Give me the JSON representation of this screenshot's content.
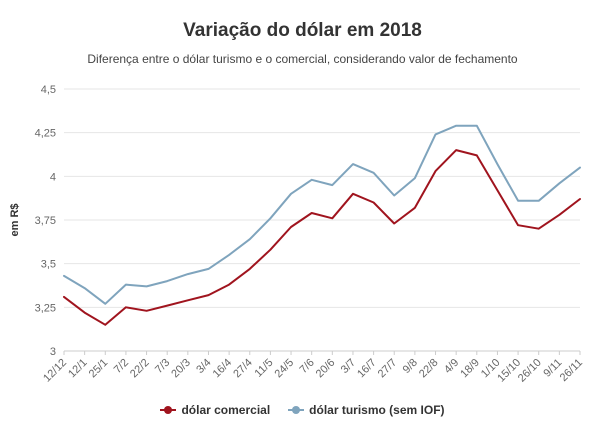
{
  "chart_data": {
    "type": "line",
    "title": "Variação do dólar em 2018",
    "subtitle": "Diferença entre o dólar turismo e o comercial, considerando valor de fechamento",
    "ylabel": "em R$",
    "ylim": [
      3,
      4.5
    ],
    "yticks": [
      "3",
      "3,25",
      "3,5",
      "3,75",
      "4",
      "4,25",
      "4,5"
    ],
    "grid": "horizontal",
    "legend_position": "bottom",
    "x": [
      "12/12",
      "12/1",
      "25/1",
      "7/2",
      "22/2",
      "7/3",
      "20/3",
      "3/4",
      "16/4",
      "27/4",
      "11/5",
      "24/5",
      "7/6",
      "20/6",
      "3/7",
      "16/7",
      "27/7",
      "9/8",
      "22/8",
      "4/9",
      "18/9",
      "1/10",
      "15/10",
      "26/10",
      "9/11",
      "26/11"
    ],
    "series": [
      {
        "name": "dólar comercial",
        "color": "#a0141e",
        "values": [
          3.31,
          3.22,
          3.15,
          3.25,
          3.23,
          3.26,
          3.29,
          3.32,
          3.38,
          3.47,
          3.58,
          3.71,
          3.79,
          3.76,
          3.9,
          3.85,
          3.73,
          3.82,
          4.03,
          4.15,
          4.12,
          3.92,
          3.72,
          3.7,
          3.78,
          3.87
        ]
      },
      {
        "name": "dólar turismo (sem IOF)",
        "color": "#7fa4bd",
        "values": [
          3.43,
          3.36,
          3.27,
          3.38,
          3.37,
          3.4,
          3.44,
          3.47,
          3.55,
          3.64,
          3.76,
          3.9,
          3.98,
          3.95,
          4.07,
          4.02,
          3.89,
          3.99,
          4.24,
          4.29,
          4.29,
          4.07,
          3.86,
          3.86,
          3.96,
          4.05
        ]
      }
    ]
  }
}
